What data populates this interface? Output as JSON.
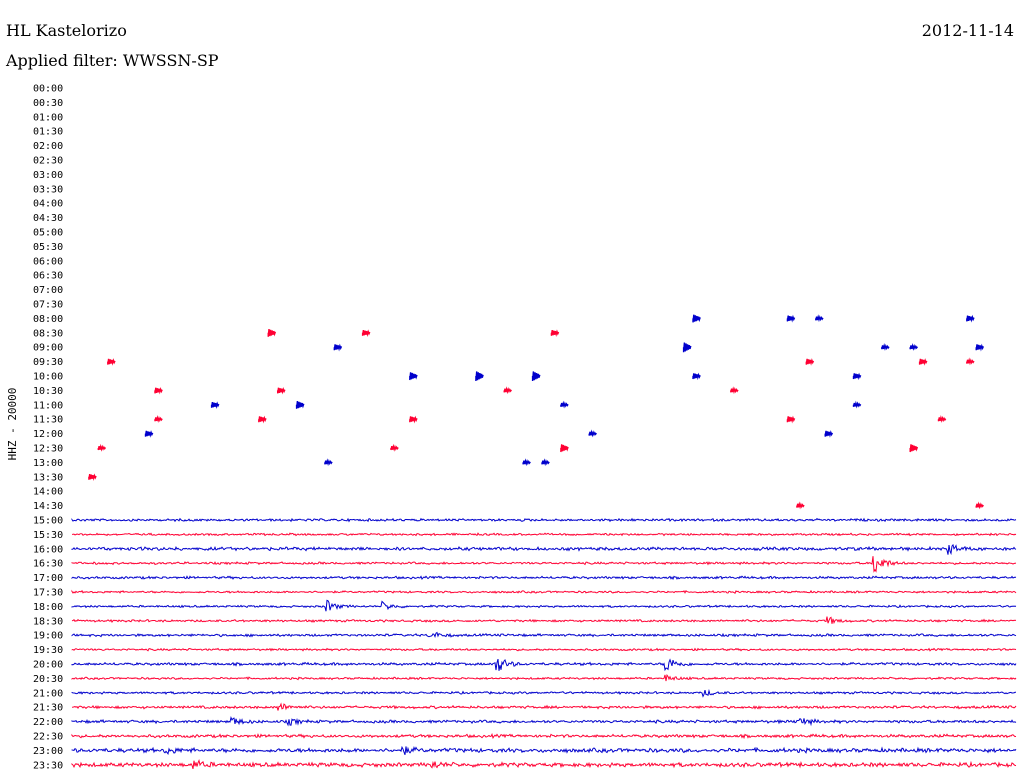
{
  "header": {
    "station": "HL Kastelorizo",
    "date": "2012-11-14",
    "filter": "Applied filter: WWSSN-SP"
  },
  "colors": {
    "odd": "#0000cc",
    "even": "#ff0033"
  },
  "chart_data": {
    "type": "line",
    "title": "HL Kastelorizo",
    "subtitle": "Applied filter: WWSSN-SP",
    "ylabel": "HHZ - 20000",
    "row_labels": [
      "00:00",
      "00:30",
      "01:00",
      "01:30",
      "02:00",
      "02:30",
      "03:00",
      "03:30",
      "04:00",
      "04:30",
      "05:00",
      "05:30",
      "06:00",
      "06:30",
      "07:00",
      "07:30",
      "08:00",
      "08:30",
      "09:00",
      "09:30",
      "10:00",
      "10:30",
      "11:00",
      "11:30",
      "12:00",
      "12:30",
      "13:00",
      "13:30",
      "14:00",
      "14:30",
      "15:00",
      "15:30",
      "16:00",
      "16:30",
      "17:00",
      "17:30",
      "18:00",
      "18:30",
      "19:00",
      "19:30",
      "20:00",
      "20:30",
      "21:00",
      "21:30",
      "22:00",
      "22:30",
      "23:00",
      "23:30"
    ],
    "continuous_from_row": 30,
    "row_amplitude": [
      0,
      0,
      0,
      0,
      0,
      0,
      0,
      0,
      0,
      0,
      0,
      0,
      0,
      0,
      0,
      0,
      0,
      0,
      0,
      0,
      0,
      0,
      0,
      0,
      0,
      0,
      0,
      0,
      0,
      0,
      1.2,
      1.0,
      1.6,
      1.1,
      1.2,
      1.0,
      1.0,
      1.1,
      1.2,
      1.0,
      1.3,
      1.0,
      1.1,
      1.3,
      1.4,
      1.5,
      2.0,
      2.0
    ],
    "events": [
      {
        "row": 16,
        "t": 0.66,
        "a": 4
      },
      {
        "row": 16,
        "t": 0.76,
        "a": 3
      },
      {
        "row": 16,
        "t": 0.95,
        "a": 3
      },
      {
        "row": 16,
        "t": 0.79,
        "a": 2
      },
      {
        "row": 17,
        "t": 0.21,
        "a": 4
      },
      {
        "row": 17,
        "t": 0.31,
        "a": 3
      },
      {
        "row": 17,
        "t": 0.51,
        "a": 3
      },
      {
        "row": 18,
        "t": 0.28,
        "a": 3
      },
      {
        "row": 18,
        "t": 0.65,
        "a": 5
      },
      {
        "row": 18,
        "t": 0.86,
        "a": 2
      },
      {
        "row": 18,
        "t": 0.89,
        "a": 2
      },
      {
        "row": 18,
        "t": 0.96,
        "a": 3
      },
      {
        "row": 19,
        "t": 0.04,
        "a": 3
      },
      {
        "row": 19,
        "t": 0.78,
        "a": 3
      },
      {
        "row": 19,
        "t": 0.9,
        "a": 3
      },
      {
        "row": 19,
        "t": 0.95,
        "a": 2
      },
      {
        "row": 20,
        "t": 0.36,
        "a": 4
      },
      {
        "row": 20,
        "t": 0.43,
        "a": 5
      },
      {
        "row": 20,
        "t": 0.49,
        "a": 5
      },
      {
        "row": 20,
        "t": 0.66,
        "a": 3
      },
      {
        "row": 20,
        "t": 0.83,
        "a": 3
      },
      {
        "row": 21,
        "t": 0.09,
        "a": 3
      },
      {
        "row": 21,
        "t": 0.22,
        "a": 3
      },
      {
        "row": 21,
        "t": 0.46,
        "a": 2
      },
      {
        "row": 21,
        "t": 0.7,
        "a": 2
      },
      {
        "row": 22,
        "t": 0.15,
        "a": 3
      },
      {
        "row": 22,
        "t": 0.24,
        "a": 4
      },
      {
        "row": 22,
        "t": 0.52,
        "a": 2
      },
      {
        "row": 22,
        "t": 0.83,
        "a": 2
      },
      {
        "row": 23,
        "t": 0.09,
        "a": 2
      },
      {
        "row": 23,
        "t": 0.2,
        "a": 3
      },
      {
        "row": 23,
        "t": 0.36,
        "a": 3
      },
      {
        "row": 23,
        "t": 0.76,
        "a": 3
      },
      {
        "row": 23,
        "t": 0.92,
        "a": 2
      },
      {
        "row": 24,
        "t": 0.08,
        "a": 3
      },
      {
        "row": 24,
        "t": 0.55,
        "a": 2
      },
      {
        "row": 24,
        "t": 0.8,
        "a": 3
      },
      {
        "row": 25,
        "t": 0.03,
        "a": 2
      },
      {
        "row": 25,
        "t": 0.34,
        "a": 2
      },
      {
        "row": 25,
        "t": 0.52,
        "a": 4
      },
      {
        "row": 25,
        "t": 0.89,
        "a": 4
      },
      {
        "row": 26,
        "t": 0.27,
        "a": 2
      },
      {
        "row": 26,
        "t": 0.48,
        "a": 2
      },
      {
        "row": 26,
        "t": 0.5,
        "a": 2
      },
      {
        "row": 27,
        "t": 0.02,
        "a": 3
      },
      {
        "row": 29,
        "t": 0.77,
        "a": 2
      },
      {
        "row": 29,
        "t": 0.96,
        "a": 2
      },
      {
        "row": 32,
        "t": 0.93,
        "a": 5
      },
      {
        "row": 33,
        "t": 0.85,
        "a": 12
      },
      {
        "row": 36,
        "t": 0.27,
        "a": 6
      },
      {
        "row": 36,
        "t": 0.33,
        "a": 4
      },
      {
        "row": 37,
        "t": 0.8,
        "a": 4
      },
      {
        "row": 38,
        "t": 0.38,
        "a": 4
      },
      {
        "row": 40,
        "t": 0.45,
        "a": 9
      },
      {
        "row": 40,
        "t": 0.63,
        "a": 8
      },
      {
        "row": 41,
        "t": 0.63,
        "a": 3
      },
      {
        "row": 42,
        "t": 0.67,
        "a": 3
      },
      {
        "row": 43,
        "t": 0.22,
        "a": 4
      },
      {
        "row": 44,
        "t": 0.17,
        "a": 4
      },
      {
        "row": 44,
        "t": 0.23,
        "a": 3
      },
      {
        "row": 44,
        "t": 0.77,
        "a": 5
      },
      {
        "row": 46,
        "t": 0.1,
        "a": 3
      },
      {
        "row": 46,
        "t": 0.35,
        "a": 4
      },
      {
        "row": 47,
        "t": 0.13,
        "a": 4
      },
      {
        "row": 47,
        "t": 0.38,
        "a": 4
      }
    ]
  }
}
